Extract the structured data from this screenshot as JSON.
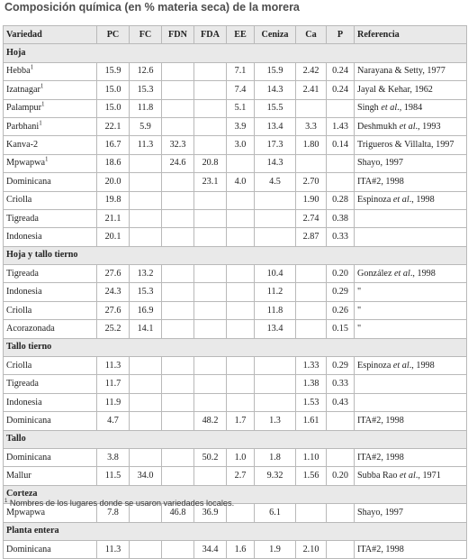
{
  "title": "Composición química (en % materia seca) de la morera",
  "headers": [
    "Variedad",
    "PC",
    "FC",
    "FDN",
    "FDA",
    "EE",
    "Ceniza",
    "Ca",
    "P",
    "Referencia"
  ],
  "sections": [
    {
      "label": "Hoja",
      "rows": [
        {
          "variedad": "Hebba",
          "sup": "1",
          "pc": "15.9",
          "fc": "12.6",
          "fdn": "",
          "fda": "",
          "ee": "7.1",
          "ceniza": "15.9",
          "ca": "2.42",
          "p": "0.24",
          "ref": "Narayana & Setty, 1977",
          "ref_em": ""
        },
        {
          "variedad": "Izatnagar",
          "sup": "1",
          "pc": "15.0",
          "fc": "15.3",
          "fdn": "",
          "fda": "",
          "ee": "7.4",
          "ceniza": "14.3",
          "ca": "2.41",
          "p": "0.24",
          "ref": "Jayal & Kehar, 1962",
          "ref_em": ""
        },
        {
          "variedad": "Palampur",
          "sup": "1",
          "pc": "15.0",
          "fc": "11.8",
          "fdn": "",
          "fda": "",
          "ee": "5.1",
          "ceniza": "15.5",
          "ca": "",
          "p": "",
          "ref": "Singh",
          "ref_em": " et al",
          "ref_tail": "., 1984"
        },
        {
          "variedad": "Parbhani",
          "sup": "1",
          "pc": "22.1",
          "fc": "5.9",
          "fdn": "",
          "fda": "",
          "ee": "3.9",
          "ceniza": "13.4",
          "ca": "3.3",
          "p": "1.43",
          "ref": "Deshmukh",
          "ref_em": " et al",
          "ref_tail": "., 1993"
        },
        {
          "variedad": "Kanva-2",
          "sup": "",
          "pc": "16.7",
          "fc": "11.3",
          "fdn": "32.3",
          "fda": "",
          "ee": "3.0",
          "ceniza": "17.3",
          "ca": "1.80",
          "p": "0.14",
          "ref": "Trigueros & Villalta, 1997",
          "ref_em": ""
        },
        {
          "variedad": "Mpwapwa",
          "sup": "1",
          "pc": "18.6",
          "fc": "",
          "fdn": "24.6",
          "fda": "20.8",
          "ee": "",
          "ceniza": "14.3",
          "ca": "",
          "p": "",
          "ref": "Shayo, 1997",
          "ref_em": ""
        },
        {
          "variedad": "Dominicana",
          "sup": "",
          "pc": "20.0",
          "fc": "",
          "fdn": "",
          "fda": "23.1",
          "ee": "4.0",
          "ceniza": "4.5",
          "ca": "2.70",
          "p": "",
          "ref": "ITA#2, 1998",
          "ref_em": ""
        },
        {
          "variedad": "Criolla",
          "sup": "",
          "pc": "19.8",
          "fc": "",
          "fdn": "",
          "fda": "",
          "ee": "",
          "ceniza": "",
          "ca": "1.90",
          "p": "0.28",
          "ref": "Espinoza",
          "ref_em": " et al",
          "ref_tail": "., 1998"
        },
        {
          "variedad": "Tigreada",
          "sup": "",
          "pc": "21.1",
          "fc": "",
          "fdn": "",
          "fda": "",
          "ee": "",
          "ceniza": "",
          "ca": "2.74",
          "p": "0.38",
          "ref": "",
          "ref_em": ""
        },
        {
          "variedad": "Indonesia",
          "sup": "",
          "pc": "20.1",
          "fc": "",
          "fdn": "",
          "fda": "",
          "ee": "",
          "ceniza": "",
          "ca": "2.87",
          "p": "0.33",
          "ref": "",
          "ref_em": ""
        }
      ]
    },
    {
      "label": "Hoja y tallo tierno",
      "rows": [
        {
          "variedad": "Tigreada",
          "sup": "",
          "pc": "27.6",
          "fc": "13.2",
          "fdn": "",
          "fda": "",
          "ee": "",
          "ceniza": "10.4",
          "ca": "",
          "p": "0.20",
          "ref": "González",
          "ref_em": " et al",
          "ref_tail": "., 1998"
        },
        {
          "variedad": "Indonesia",
          "sup": "",
          "pc": "24.3",
          "fc": "15.3",
          "fdn": "",
          "fda": "",
          "ee": "",
          "ceniza": "11.2",
          "ca": "",
          "p": "0.29",
          "ref": "\"",
          "ref_em": ""
        },
        {
          "variedad": "Criolla",
          "sup": "",
          "pc": "27.6",
          "fc": "16.9",
          "fdn": "",
          "fda": "",
          "ee": "",
          "ceniza": "11.8",
          "ca": "",
          "p": "0.26",
          "ref": "\"",
          "ref_em": ""
        },
        {
          "variedad": "Acorazonada",
          "sup": "",
          "pc": "25.2",
          "fc": "14.1",
          "fdn": "",
          "fda": "",
          "ee": "",
          "ceniza": "13.4",
          "ca": "",
          "p": "0.15",
          "ref": "\"",
          "ref_em": ""
        }
      ]
    },
    {
      "label": "Tallo tierno",
      "rows": [
        {
          "variedad": "Criolla",
          "sup": "",
          "pc": "11.3",
          "fc": "",
          "fdn": "",
          "fda": "",
          "ee": "",
          "ceniza": "",
          "ca": "1.33",
          "p": "0.29",
          "ref": "Espinoza",
          "ref_em": " et al",
          "ref_tail": "., 1998"
        },
        {
          "variedad": "Tigreada",
          "sup": "",
          "pc": "11.7",
          "fc": "",
          "fdn": "",
          "fda": "",
          "ee": "",
          "ceniza": "",
          "ca": "1.38",
          "p": "0.33",
          "ref": "",
          "ref_em": ""
        },
        {
          "variedad": "Indonesia",
          "sup": "",
          "pc": "11.9",
          "fc": "",
          "fdn": "",
          "fda": "",
          "ee": "",
          "ceniza": "",
          "ca": "1.53",
          "p": "0.43",
          "ref": "",
          "ref_em": ""
        },
        {
          "variedad": "Dominicana",
          "sup": "",
          "pc": "4.7",
          "fc": "",
          "fdn": "",
          "fda": "48.2",
          "ee": "1.7",
          "ceniza": "1.3",
          "ca": "1.61",
          "p": "",
          "ref": "ITA#2, 1998",
          "ref_em": ""
        }
      ]
    },
    {
      "label": "Tallo",
      "rows": [
        {
          "variedad": "Dominicana",
          "sup": "",
          "pc": "3.8",
          "fc": "",
          "fdn": "",
          "fda": "50.2",
          "ee": "1.0",
          "ceniza": "1.8",
          "ca": "1.10",
          "p": "",
          "ref": "ITA#2, 1998",
          "ref_em": ""
        },
        {
          "variedad": "Mallur",
          "sup": "",
          "pc": "11.5",
          "fc": "34.0",
          "fdn": "",
          "fda": "",
          "ee": "2.7",
          "ceniza": "9.32",
          "ca": "1.56",
          "p": "0.20",
          "ref": "Subba Rao",
          "ref_em": " et al",
          "ref_tail": "., 1971"
        }
      ]
    },
    {
      "label": "Corteza",
      "rows": [
        {
          "variedad": "Mpwapwa",
          "sup": "",
          "pc": "7.8",
          "fc": "",
          "fdn": "46.8",
          "fda": "36.9",
          "ee": "",
          "ceniza": "6.1",
          "ca": "",
          "p": "",
          "ref": "Shayo, 1997",
          "ref_em": ""
        }
      ]
    },
    {
      "label": "Planta entera",
      "rows": [
        {
          "variedad": "Dominicana",
          "sup": "",
          "pc": "11.3",
          "fc": "",
          "fdn": "",
          "fda": "34.4",
          "ee": "1.6",
          "ceniza": "1.9",
          "ca": "2.10",
          "p": "",
          "ref": "ITA#2, 1998",
          "ref_em": ""
        }
      ]
    }
  ],
  "footnote": {
    "sup": "1",
    "text": " Nombres de los lugares donde se usaron variedades locales."
  }
}
